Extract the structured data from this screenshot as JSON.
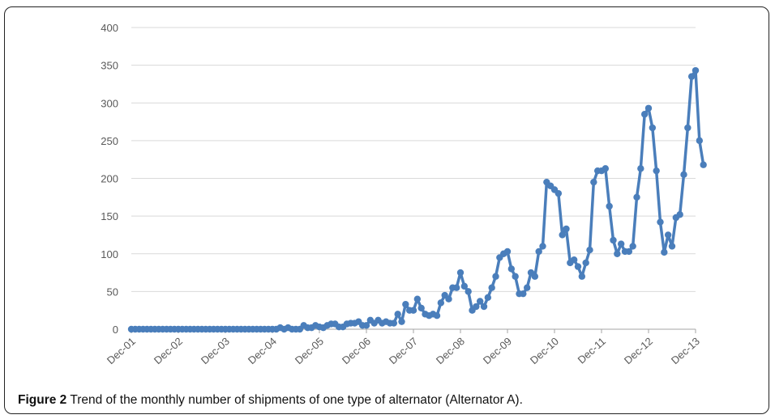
{
  "caption": {
    "label": "Figure 2",
    "text": "Trend of the monthly number of shipments of one type of alternator (Alternator A)."
  },
  "chart_data": {
    "type": "line",
    "title": "",
    "xlabel": "",
    "ylabel": "",
    "ylim": [
      0,
      400
    ],
    "yticks": [
      0,
      50,
      100,
      150,
      200,
      250,
      300,
      350,
      400
    ],
    "xtick_labels": [
      "Dec-01",
      "Dec-02",
      "Dec-03",
      "Dec-04",
      "Dec-05",
      "Dec-06",
      "Dec-07",
      "Dec-08",
      "Dec-09",
      "Dec-10",
      "Dec-11",
      "Dec-12",
      "Dec-13"
    ],
    "grid": "horizontal",
    "legend": "none",
    "line_color": "#4a7ebb",
    "series": [
      {
        "values": [
          0,
          0,
          0,
          0,
          0,
          0,
          0,
          0,
          0,
          0,
          0,
          0,
          0,
          0,
          0,
          0,
          0,
          0,
          0,
          0,
          0,
          0,
          0,
          0,
          0,
          0,
          0,
          0,
          0,
          0,
          0,
          0,
          0,
          0,
          0,
          0,
          0,
          0,
          2,
          0,
          2,
          0,
          0,
          0,
          5,
          2,
          2,
          5,
          3,
          2,
          5,
          7,
          7,
          3,
          3,
          7,
          8,
          8,
          10,
          5,
          5,
          12,
          8,
          12,
          8,
          10,
          8,
          8,
          20,
          10,
          33,
          25,
          25,
          40,
          28,
          20,
          18,
          20,
          18,
          35,
          45,
          40,
          55,
          55,
          75,
          57,
          50,
          25,
          30,
          37,
          30,
          42,
          55,
          70,
          95,
          100,
          103,
          80,
          70,
          47,
          47,
          55,
          75,
          70,
          103,
          110,
          195,
          190,
          185,
          180,
          125,
          133,
          88,
          92,
          83,
          70,
          88,
          105,
          195,
          210,
          210,
          213,
          163,
          118,
          100,
          113,
          103,
          103,
          110,
          175,
          213,
          285,
          293,
          267,
          210,
          142,
          102,
          125,
          110,
          148,
          152,
          205,
          267,
          335,
          343,
          250,
          218
        ]
      }
    ]
  }
}
